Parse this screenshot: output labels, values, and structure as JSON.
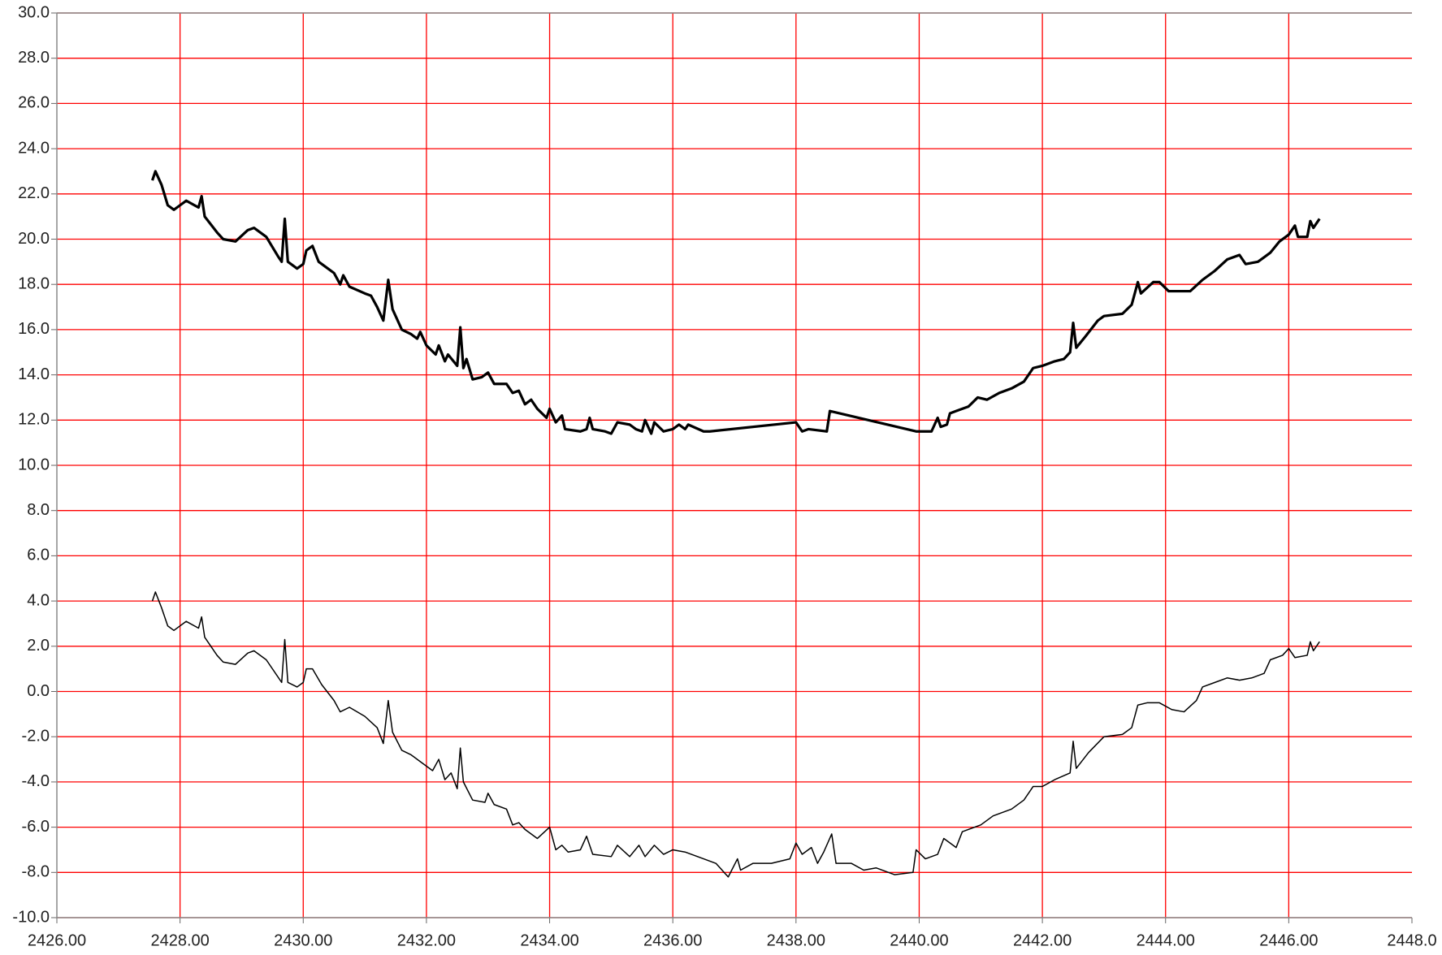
{
  "chart_data": {
    "type": "line",
    "xlim": [
      2426,
      2448
    ],
    "ylim": [
      -10,
      30
    ],
    "grid": true,
    "grid_color": "#ff0000",
    "xticks": [
      {
        "value": 2426,
        "label": "2426.00"
      },
      {
        "value": 2428,
        "label": "2428.00"
      },
      {
        "value": 2430,
        "label": "2430.00"
      },
      {
        "value": 2432,
        "label": "2432.00"
      },
      {
        "value": 2434,
        "label": "2434.00"
      },
      {
        "value": 2436,
        "label": "2436.00"
      },
      {
        "value": 2438,
        "label": "2438.00"
      },
      {
        "value": 2440,
        "label": "2440.00"
      },
      {
        "value": 2442,
        "label": "2442.00"
      },
      {
        "value": 2444,
        "label": "2444.00"
      },
      {
        "value": 2446,
        "label": "2446.00"
      },
      {
        "value": 2448,
        "label": "2448.0"
      }
    ],
    "yticks": [
      {
        "value": -10,
        "label": "-10.0"
      },
      {
        "value": -8,
        "label": "-8.0"
      },
      {
        "value": -6,
        "label": "-6.0"
      },
      {
        "value": -4,
        "label": "-4.0"
      },
      {
        "value": -2,
        "label": "-2.0"
      },
      {
        "value": 0,
        "label": "0.0"
      },
      {
        "value": 2,
        "label": "2.0"
      },
      {
        "value": 4,
        "label": "4.0"
      },
      {
        "value": 6,
        "label": "6.0"
      },
      {
        "value": 8,
        "label": "8.0"
      },
      {
        "value": 10,
        "label": "10.0"
      },
      {
        "value": 12,
        "label": "12.0"
      },
      {
        "value": 14,
        "label": "14.0"
      },
      {
        "value": 16,
        "label": "16.0"
      },
      {
        "value": 18,
        "label": "18.0"
      },
      {
        "value": 20,
        "label": "20.0"
      },
      {
        "value": 22,
        "label": "22.0"
      },
      {
        "value": 24,
        "label": "24.0"
      },
      {
        "value": 26,
        "label": "26.0"
      },
      {
        "value": 28,
        "label": "28.0"
      },
      {
        "value": 30,
        "label": "30.0"
      }
    ],
    "series": [
      {
        "color": "#000000",
        "width": 3.2,
        "x": [
          2427.55,
          2427.6,
          2427.7,
          2427.8,
          2427.9,
          2428.0,
          2428.1,
          2428.3,
          2428.35,
          2428.4,
          2428.6,
          2428.7,
          2428.9,
          2429.1,
          2429.2,
          2429.4,
          2429.6,
          2429.65,
          2429.7,
          2429.75,
          2429.9,
          2430.0,
          2430.05,
          2430.15,
          2430.25,
          2430.4,
          2430.5,
          2430.6,
          2430.65,
          2430.75,
          2431.0,
          2431.1,
          2431.2,
          2431.3,
          2431.38,
          2431.45,
          2431.6,
          2431.75,
          2431.85,
          2431.9,
          2432.0,
          2432.15,
          2432.2,
          2432.3,
          2432.35,
          2432.5,
          2432.55,
          2432.6,
          2432.65,
          2432.75,
          2432.9,
          2433.0,
          2433.1,
          2433.3,
          2433.4,
          2433.5,
          2433.6,
          2433.7,
          2433.8,
          2433.95,
          2434.0,
          2434.1,
          2434.2,
          2434.25,
          2434.5,
          2434.6,
          2434.65,
          2434.7,
          2434.9,
          2435.0,
          2435.1,
          2435.3,
          2435.4,
          2435.5,
          2435.55,
          2435.65,
          2435.7,
          2435.85,
          2436.0,
          2436.1,
          2436.2,
          2436.25,
          2436.5,
          2436.6,
          2438.0,
          2438.1,
          2438.2,
          2438.5,
          2438.55,
          2439.95,
          2440.2,
          2440.3,
          2440.35,
          2440.45,
          2440.5,
          2440.6,
          2440.8,
          2440.95,
          2441.1,
          2441.3,
          2441.5,
          2441.7,
          2441.85,
          2442.0,
          2442.2,
          2442.35,
          2442.45,
          2442.5,
          2442.55,
          2442.7,
          2442.9,
          2443.0,
          2443.3,
          2443.45,
          2443.55,
          2443.6,
          2443.8,
          2443.9,
          2444.05,
          2444.15,
          2444.4,
          2444.6,
          2444.8,
          2445.0,
          2445.2,
          2445.3,
          2445.5,
          2445.6,
          2445.7,
          2445.85,
          2446.0,
          2446.1,
          2446.15,
          2446.3,
          2446.35,
          2446.4,
          2446.5
        ],
        "values": [
          22.6,
          23.0,
          22.4,
          21.5,
          21.3,
          21.5,
          21.7,
          21.4,
          21.9,
          21.0,
          20.3,
          20.0,
          19.9,
          20.4,
          20.5,
          20.1,
          19.2,
          19.0,
          20.9,
          19.0,
          18.7,
          18.9,
          19.5,
          19.7,
          19.0,
          18.7,
          18.5,
          18.0,
          18.4,
          17.9,
          17.6,
          17.5,
          17.0,
          16.4,
          18.2,
          16.9,
          16.0,
          15.8,
          15.6,
          15.9,
          15.3,
          14.9,
          15.3,
          14.6,
          14.9,
          14.4,
          16.1,
          14.3,
          14.7,
          13.8,
          13.9,
          14.1,
          13.6,
          13.6,
          13.2,
          13.3,
          12.7,
          12.9,
          12.5,
          12.1,
          12.5,
          11.9,
          12.2,
          11.6,
          11.5,
          11.6,
          12.1,
          11.6,
          11.5,
          11.4,
          11.9,
          11.8,
          11.6,
          11.5,
          12.0,
          11.4,
          11.9,
          11.5,
          11.6,
          11.8,
          11.6,
          11.8,
          11.5,
          11.5,
          11.9,
          11.5,
          11.6,
          11.5,
          12.4,
          11.5,
          11.5,
          12.1,
          11.7,
          11.8,
          12.3,
          12.4,
          12.6,
          13.0,
          12.9,
          13.2,
          13.4,
          13.7,
          14.3,
          14.4,
          14.6,
          14.7,
          15.0,
          16.3,
          15.2,
          15.7,
          16.4,
          16.6,
          16.7,
          17.1,
          18.1,
          17.6,
          18.1,
          18.1,
          17.7,
          17.7,
          17.7,
          18.2,
          18.6,
          19.1,
          19.3,
          18.9,
          19.0,
          19.2,
          19.4,
          19.9,
          20.2,
          20.6,
          20.1,
          20.1,
          20.8,
          20.5,
          20.9
        ]
      },
      {
        "color": "#000000",
        "width": 1.5,
        "x": [
          2427.55,
          2427.6,
          2427.7,
          2427.8,
          2427.9,
          2428.1,
          2428.3,
          2428.35,
          2428.4,
          2428.6,
          2428.7,
          2428.9,
          2429.1,
          2429.2,
          2429.4,
          2429.6,
          2429.65,
          2429.7,
          2429.75,
          2429.9,
          2430.0,
          2430.05,
          2430.15,
          2430.3,
          2430.5,
          2430.6,
          2430.75,
          2431.0,
          2431.2,
          2431.3,
          2431.38,
          2431.45,
          2431.6,
          2431.75,
          2431.9,
          2432.1,
          2432.2,
          2432.3,
          2432.4,
          2432.5,
          2432.55,
          2432.6,
          2432.75,
          2432.95,
          2433.0,
          2433.1,
          2433.3,
          2433.4,
          2433.5,
          2433.6,
          2433.8,
          2434.0,
          2434.1,
          2434.2,
          2434.3,
          2434.5,
          2434.6,
          2434.7,
          2435.0,
          2435.1,
          2435.3,
          2435.45,
          2435.55,
          2435.7,
          2435.85,
          2436.0,
          2436.2,
          2436.5,
          2436.7,
          2436.9,
          2437.05,
          2437.1,
          2437.3,
          2437.6,
          2437.9,
          2438.0,
          2438.1,
          2438.25,
          2438.35,
          2438.45,
          2438.58,
          2438.65,
          2438.9,
          2439.1,
          2439.3,
          2439.6,
          2439.9,
          2439.95,
          2440.1,
          2440.3,
          2440.4,
          2440.6,
          2440.7,
          2441.0,
          2441.2,
          2441.5,
          2441.7,
          2441.85,
          2442.0,
          2442.2,
          2442.45,
          2442.5,
          2442.55,
          2442.75,
          2443.0,
          2443.3,
          2443.45,
          2443.55,
          2443.7,
          2443.9,
          2444.1,
          2444.3,
          2444.5,
          2444.6,
          2444.8,
          2445.0,
          2445.2,
          2445.4,
          2445.6,
          2445.7,
          2445.9,
          2446.0,
          2446.1,
          2446.3,
          2446.35,
          2446.4,
          2446.5
        ],
        "values": [
          4.0,
          4.4,
          3.7,
          2.9,
          2.7,
          3.1,
          2.8,
          3.3,
          2.4,
          1.6,
          1.3,
          1.2,
          1.7,
          1.8,
          1.4,
          0.6,
          0.4,
          2.3,
          0.4,
          0.2,
          0.4,
          1.0,
          1.0,
          0.3,
          -0.4,
          -0.9,
          -0.7,
          -1.1,
          -1.6,
          -2.3,
          -0.4,
          -1.8,
          -2.6,
          -2.8,
          -3.1,
          -3.5,
          -3.0,
          -3.9,
          -3.6,
          -4.3,
          -2.5,
          -4.0,
          -4.8,
          -4.9,
          -4.5,
          -5.0,
          -5.2,
          -5.9,
          -5.8,
          -6.1,
          -6.5,
          -6.0,
          -7.0,
          -6.8,
          -7.1,
          -7.0,
          -6.4,
          -7.2,
          -7.3,
          -6.8,
          -7.3,
          -6.8,
          -7.3,
          -6.8,
          -7.2,
          -7.0,
          -7.1,
          -7.4,
          -7.6,
          -8.2,
          -7.4,
          -7.9,
          -7.6,
          -7.6,
          -7.4,
          -6.7,
          -7.2,
          -6.9,
          -7.6,
          -7.1,
          -6.3,
          -7.6,
          -7.6,
          -7.9,
          -7.8,
          -8.1,
          -8.0,
          -7.0,
          -7.4,
          -7.2,
          -6.5,
          -6.9,
          -6.2,
          -5.9,
          -5.5,
          -5.2,
          -4.8,
          -4.2,
          -4.2,
          -3.9,
          -3.6,
          -2.2,
          -3.4,
          -2.7,
          -2.0,
          -1.9,
          -1.6,
          -0.6,
          -0.5,
          -0.5,
          -0.8,
          -0.9,
          -0.4,
          0.2,
          0.4,
          0.6,
          0.5,
          0.6,
          0.8,
          1.4,
          1.6,
          1.9,
          1.5,
          1.6,
          2.2,
          1.8,
          2.2
        ]
      }
    ]
  }
}
